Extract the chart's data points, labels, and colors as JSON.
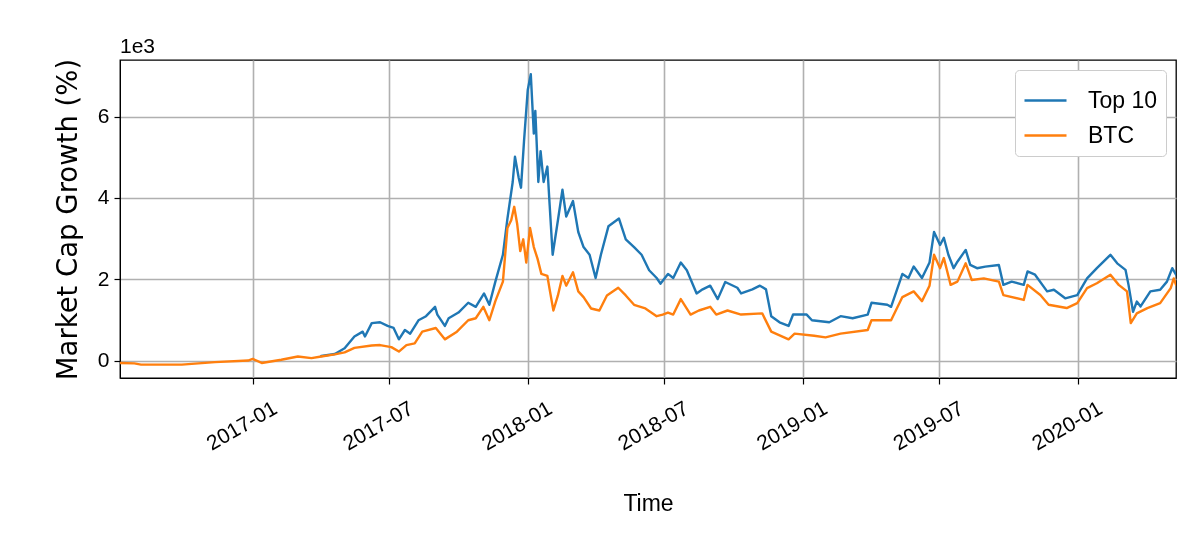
{
  "chart_data": {
    "type": "line",
    "xlabel": "Time",
    "ylabel": "Market Cap Growth (%)",
    "annotations": [
      "1e3"
    ],
    "xlim": [
      "2016-07-09",
      "2020-05-10"
    ],
    "xticks": [
      "2017-01",
      "2017-07",
      "2018-01",
      "2018-07",
      "2019-01",
      "2019-07",
      "2020-01"
    ],
    "ylim": [
      -0.43,
      7.39
    ],
    "yticks": [
      0,
      2,
      4,
      6
    ],
    "grid": true,
    "legend": "top right",
    "series": [
      {
        "name": "Top 10",
        "color": "#1f77b4",
        "x": [
          "2017-04-02",
          "2017-04-20",
          "2017-05-03",
          "2017-05-16",
          "2017-05-27",
          "2017-05-30",
          "2017-06-08",
          "2017-06-19",
          "2017-06-29",
          "2017-07-07",
          "2017-07-14",
          "2017-07-22",
          "2017-07-29",
          "2017-08-09",
          "2017-08-19",
          "2017-08-31",
          "2017-09-03",
          "2017-09-13",
          "2017-09-18",
          "2017-10-01",
          "2017-10-14",
          "2017-10-24",
          "2017-11-04",
          "2017-11-11",
          "2017-11-19",
          "2017-11-29",
          "2017-12-05",
          "2017-12-12",
          "2017-12-15",
          "2017-12-20",
          "2017-12-23",
          "2017-12-27",
          "2018-01-01",
          "2018-01-05",
          "2018-01-09",
          "2018-01-11",
          "2018-01-15",
          "2018-01-18",
          "2018-01-22",
          "2018-01-27",
          "2018-01-30",
          "2018-02-03",
          "2018-02-10",
          "2018-02-16",
          "2018-02-21",
          "2018-03-02",
          "2018-03-09",
          "2018-03-16",
          "2018-03-24",
          "2018-04-01",
          "2018-04-08",
          "2018-04-18",
          "2018-05-02",
          "2018-05-11",
          "2018-05-22",
          "2018-06-01",
          "2018-06-11",
          "2018-06-21",
          "2018-06-26",
          "2018-07-06",
          "2018-07-13",
          "2018-07-23",
          "2018-07-31",
          "2018-08-13",
          "2018-08-21",
          "2018-08-31",
          "2018-09-10",
          "2018-09-20",
          "2018-10-06",
          "2018-10-11",
          "2018-10-26",
          "2018-11-05",
          "2018-11-13",
          "2018-11-20",
          "2018-12-01",
          "2018-12-13",
          "2018-12-19",
          "2019-01-06",
          "2019-01-13",
          "2019-02-05",
          "2019-02-20",
          "2019-03-08",
          "2019-03-28",
          "2019-04-02",
          "2019-04-23",
          "2019-04-28",
          "2019-05-13",
          "2019-05-21",
          "2019-05-28",
          "2019-06-08",
          "2019-06-18",
          "2019-06-24",
          "2019-07-02",
          "2019-07-07",
          "2019-07-13",
          "2019-07-20",
          "2019-07-25",
          "2019-08-05",
          "2019-08-11",
          "2019-08-20",
          "2019-08-31",
          "2019-09-18",
          "2019-09-24",
          "2019-10-05",
          "2019-10-21",
          "2019-10-26",
          "2019-11-05",
          "2019-11-21",
          "2019-11-30",
          "2019-12-15",
          "2019-12-31",
          "2020-01-13",
          "2020-01-26",
          "2020-02-13",
          "2020-02-22",
          "2020-03-04",
          "2020-03-08",
          "2020-03-14",
          "2020-03-19",
          "2020-03-24",
          "2020-04-06",
          "2020-04-19",
          "2020-04-28",
          "2020-05-05",
          "2020-05-10"
        ],
        "values": [
          0.11,
          0.16,
          0.3,
          0.59,
          0.71,
          0.59,
          0.92,
          0.94,
          0.85,
          0.8,
          0.52,
          0.75,
          0.66,
          0.99,
          1.09,
          1.32,
          1.13,
          0.85,
          1.04,
          1.18,
          1.42,
          1.32,
          1.65,
          1.37,
          1.94,
          2.6,
          3.49,
          4.39,
          5.01,
          4.49,
          4.25,
          5.39,
          6.66,
          7.04,
          5.58,
          6.14,
          4.39,
          5.15,
          4.39,
          4.77,
          3.83,
          2.6,
          3.45,
          4.2,
          3.54,
          3.92,
          3.16,
          2.79,
          2.6,
          2.03,
          2.6,
          3.3,
          3.49,
          2.98,
          2.79,
          2.6,
          2.22,
          2.03,
          1.89,
          2.13,
          2.03,
          2.41,
          2.22,
          1.65,
          1.75,
          1.84,
          1.51,
          1.93,
          1.79,
          1.65,
          1.75,
          1.84,
          1.75,
          1.09,
          0.94,
          0.85,
          1.13,
          1.13,
          0.99,
          0.94,
          1.09,
          1.04,
          1.13,
          1.42,
          1.37,
          1.32,
          2.13,
          2.03,
          2.31,
          2.03,
          2.41,
          3.16,
          2.84,
          3.02,
          2.6,
          2.27,
          2.43,
          2.72,
          2.35,
          2.27,
          2.31,
          2.35,
          1.86,
          1.94,
          1.86,
          2.19,
          2.11,
          1.7,
          1.74,
          1.53,
          1.61,
          2.02,
          2.27,
          2.6,
          2.39,
          2.23,
          1.86,
          1.2,
          1.45,
          1.33,
          1.7,
          1.74,
          1.94,
          2.27,
          2.11
        ]
      },
      {
        "name": "BTC",
        "color": "#ff7f0e",
        "x": [
          "2016-07-09",
          "2016-07-28",
          "2016-08-06",
          "2016-09-29",
          "2016-11-12",
          "2016-12-26",
          "2017-01-01",
          "2017-01-13",
          "2017-02-08",
          "2017-03-02",
          "2017-03-20",
          "2017-04-02",
          "2017-04-20",
          "2017-05-03",
          "2017-05-16",
          "2017-06-08",
          "2017-06-19",
          "2017-07-04",
          "2017-07-14",
          "2017-07-24",
          "2017-08-04",
          "2017-08-14",
          "2017-09-01",
          "2017-09-13",
          "2017-09-29",
          "2017-10-14",
          "2017-10-24",
          "2017-11-03",
          "2017-11-11",
          "2017-11-19",
          "2017-11-29",
          "2017-12-05",
          "2017-12-10",
          "2017-12-14",
          "2017-12-18",
          "2017-12-22",
          "2017-12-26",
          "2017-12-30",
          "2018-01-04",
          "2018-01-09",
          "2018-01-14",
          "2018-01-19",
          "2018-01-27",
          "2018-01-30",
          "2018-02-04",
          "2018-02-10",
          "2018-02-16",
          "2018-02-21",
          "2018-03-02",
          "2018-03-09",
          "2018-03-16",
          "2018-03-26",
          "2018-04-06",
          "2018-04-16",
          "2018-05-01",
          "2018-05-11",
          "2018-05-22",
          "2018-06-06",
          "2018-06-21",
          "2018-06-29",
          "2018-07-06",
          "2018-07-13",
          "2018-07-23",
          "2018-08-05",
          "2018-08-16",
          "2018-08-31",
          "2018-09-08",
          "2018-09-23",
          "2018-10-11",
          "2018-11-08",
          "2018-11-20",
          "2018-12-13",
          "2018-12-21",
          "2019-01-16",
          "2019-01-31",
          "2019-02-20",
          "2019-03-28",
          "2019-04-02",
          "2019-04-28",
          "2019-05-13",
          "2019-05-28",
          "2019-06-08",
          "2019-06-18",
          "2019-06-24",
          "2019-07-02",
          "2019-07-07",
          "2019-07-16",
          "2019-07-25",
          "2019-08-05",
          "2019-08-13",
          "2019-08-29",
          "2019-09-18",
          "2019-09-24",
          "2019-10-21",
          "2019-10-26",
          "2019-11-12",
          "2019-11-23",
          "2019-12-17",
          "2019-12-31",
          "2020-01-13",
          "2020-01-26",
          "2020-02-13",
          "2020-02-24",
          "2020-03-06",
          "2020-03-11",
          "2020-03-19",
          "2020-04-02",
          "2020-04-19",
          "2020-05-03",
          "2020-05-07",
          "2020-05-10"
        ],
        "values": [
          -0.06,
          -0.07,
          -0.1,
          -0.1,
          -0.04,
          0,
          0.04,
          -0.06,
          0.02,
          0.1,
          0.06,
          0.1,
          0.15,
          0.2,
          0.31,
          0.37,
          0.38,
          0.33,
          0.22,
          0.38,
          0.42,
          0.71,
          0.8,
          0.52,
          0.71,
          0.99,
          1.04,
          1.32,
          0.99,
          1.46,
          1.94,
          3.26,
          3.45,
          3.78,
          3.35,
          2.69,
          2.98,
          2.41,
          3.26,
          2.79,
          2.5,
          2.13,
          2.08,
          1.75,
          1.23,
          1.6,
          2.08,
          1.84,
          2.17,
          1.7,
          1.56,
          1.28,
          1.23,
          1.6,
          1.79,
          1.6,
          1.37,
          1.28,
          1.09,
          1.13,
          1.18,
          1.13,
          1.51,
          1.13,
          1.23,
          1.32,
          1.13,
          1.23,
          1.13,
          1.16,
          0.71,
          0.52,
          0.66,
          0.61,
          0.57,
          0.66,
          0.75,
          0.99,
          0.99,
          1.56,
          1.7,
          1.46,
          1.84,
          2.6,
          2.27,
          2.52,
          1.86,
          1.94,
          2.39,
          1.98,
          2.02,
          1.94,
          1.61,
          1.49,
          1.86,
          1.61,
          1.37,
          1.29,
          1.41,
          1.78,
          1.9,
          2.11,
          1.86,
          1.7,
          0.92,
          1.16,
          1.29,
          1.41,
          1.78,
          2.02,
          1.86
        ]
      }
    ]
  }
}
